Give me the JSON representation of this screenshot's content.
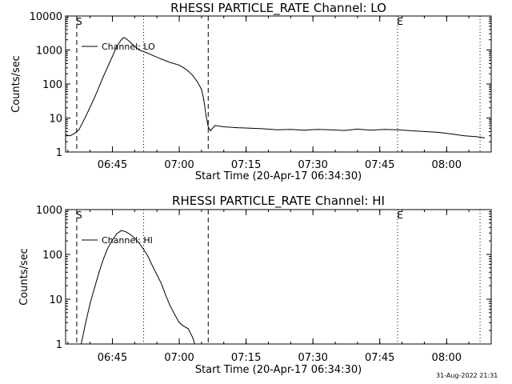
{
  "chart_data": [
    {
      "type": "line",
      "title": "RHESSI PARTICLE_RATE Channel: LO",
      "xlabel": "Start Time (20-Apr-17 06:34:30)",
      "ylabel": "Counts/sec",
      "y_scale": "log",
      "ylim": [
        1,
        10000
      ],
      "xlim": [
        "06:34:30",
        "08:10:00"
      ],
      "x_ticks": [
        "06:45",
        "07:00",
        "07:15",
        "07:30",
        "07:45",
        "08:00"
      ],
      "y_ticks": [
        "1",
        "10",
        "100",
        "1000",
        "10000"
      ],
      "markers": [
        {
          "label": "S",
          "time": "06:37:00",
          "style": "dashed"
        },
        {
          "label": "",
          "time": "06:52:00",
          "style": "dotted"
        },
        {
          "label": "",
          "time": "07:06:30",
          "style": "dashed"
        },
        {
          "label": "E",
          "time": "07:49:00",
          "style": "dotted"
        },
        {
          "label": "",
          "time": "08:07:30",
          "style": "dotted"
        }
      ],
      "legend": "Channel: LO",
      "series": [
        {
          "name": "Channel: LO",
          "x": [
            "06:34:30",
            "06:35:30",
            "06:36:30",
            "06:37:30",
            "06:39:00",
            "06:41:00",
            "06:43:00",
            "06:45:00",
            "06:46:00",
            "06:47:00",
            "06:47:30",
            "06:48:00",
            "06:49:00",
            "06:50:00",
            "06:51:00",
            "06:52:00",
            "06:54:00",
            "06:56:00",
            "06:58:00",
            "07:00:00",
            "07:01:00",
            "07:02:00",
            "07:03:00",
            "07:04:00",
            "07:05:00",
            "07:05:30",
            "07:06:00",
            "07:06:30",
            "07:07:00",
            "07:08:00",
            "07:10:00",
            "07:13:00",
            "07:16:00",
            "07:19:00",
            "07:22:00",
            "07:25:00",
            "07:28:00",
            "07:31:00",
            "07:34:00",
            "07:37:00",
            "07:40:00",
            "07:43:00",
            "07:46:00",
            "07:49:00",
            "07:52:00",
            "07:55:00",
            "07:58:00",
            "08:01:00",
            "08:04:00",
            "08:07:00",
            "08:08:30"
          ],
          "values": [
            3.2,
            3.0,
            3.5,
            4.5,
            11,
            40,
            170,
            650,
            1300,
            2000,
            2300,
            2200,
            1700,
            1300,
            1000,
            900,
            700,
            540,
            430,
            360,
            300,
            240,
            180,
            120,
            70,
            35,
            12,
            5.5,
            4.2,
            6,
            5.5,
            5.2,
            5,
            4.8,
            4.5,
            4.6,
            4.4,
            4.6,
            4.5,
            4.3,
            4.7,
            4.4,
            4.6,
            4.5,
            4.2,
            4.0,
            3.8,
            3.4,
            3.0,
            2.8,
            2.6
          ]
        }
      ]
    },
    {
      "type": "line",
      "title": "RHESSI PARTICLE_RATE Channel: HI",
      "xlabel": "Start Time (20-Apr-17 06:34:30)",
      "ylabel": "Counts/sec",
      "y_scale": "log",
      "ylim": [
        1,
        1000
      ],
      "xlim": [
        "06:34:30",
        "08:10:00"
      ],
      "x_ticks": [
        "06:45",
        "07:00",
        "07:15",
        "07:30",
        "07:45",
        "08:00"
      ],
      "y_ticks": [
        "1",
        "10",
        "100",
        "1000"
      ],
      "markers": [
        {
          "label": "S",
          "time": "06:37:00",
          "style": "dashed"
        },
        {
          "label": "",
          "time": "06:52:00",
          "style": "dotted"
        },
        {
          "label": "",
          "time": "07:06:30",
          "style": "dashed"
        },
        {
          "label": "E",
          "time": "07:49:00",
          "style": "dotted"
        },
        {
          "label": "",
          "time": "08:07:30",
          "style": "dotted"
        }
      ],
      "legend": "Channel: HI",
      "series": [
        {
          "name": "Channel: HI",
          "x": [
            "06:38:00",
            "06:39:00",
            "06:40:00",
            "06:41:00",
            "06:42:00",
            "06:43:00",
            "06:44:00",
            "06:45:00",
            "06:46:00",
            "06:47:00",
            "06:48:00",
            "06:49:00",
            "06:50:00",
            "06:51:00",
            "06:52:00",
            "06:53:00",
            "06:54:00",
            "06:55:00",
            "06:56:00",
            "06:57:00",
            "06:58:00",
            "06:59:00",
            "07:00:00",
            "07:01:00",
            "07:02:00",
            "07:03:00",
            "07:03:30"
          ],
          "values": [
            0.9,
            3,
            8,
            18,
            40,
            80,
            140,
            210,
            290,
            340,
            320,
            280,
            230,
            180,
            130,
            90,
            55,
            35,
            22,
            12,
            7,
            4.5,
            3,
            2.5,
            2.2,
            1.4,
            0.9
          ]
        }
      ]
    }
  ],
  "footer_timestamp": "31-Aug-2022 21:31"
}
